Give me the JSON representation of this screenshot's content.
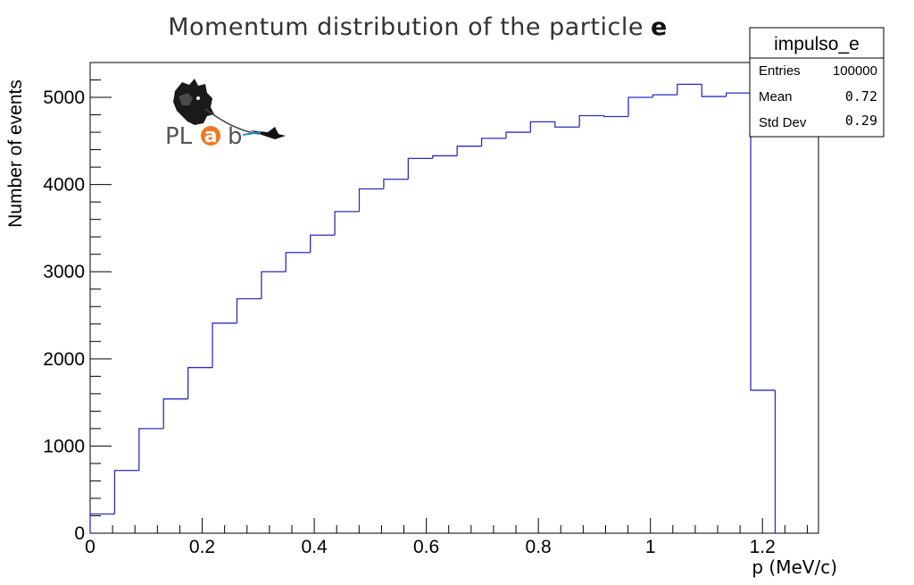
{
  "chart_data": {
    "type": "histogram",
    "title": "Momentum distribution of the particle",
    "title_particle": "e",
    "xlabel": "p (MeV/c)",
    "ylabel": "Number of events",
    "xlim": [
      0,
      1.3
    ],
    "ylim": [
      0,
      5400
    ],
    "x_ticks": [
      0,
      0.2,
      0.4,
      0.6,
      0.8,
      1,
      1.2
    ],
    "x_tick_labels": [
      "0",
      "0.2",
      "0.4",
      "0.6",
      "0.8",
      "1",
      "1.2"
    ],
    "y_ticks": [
      0,
      1000,
      2000,
      3000,
      4000,
      5000
    ],
    "y_tick_labels": [
      "0",
      "1000",
      "2000",
      "3000",
      "4000",
      "5000"
    ],
    "bin_edges": [
      0,
      0.0437,
      0.0873,
      0.131,
      0.1747,
      0.2183,
      0.262,
      0.3057,
      0.3493,
      0.393,
      0.4367,
      0.4803,
      0.524,
      0.5677,
      0.6113,
      0.655,
      0.6987,
      0.7423,
      0.786,
      0.8297,
      0.8733,
      0.917,
      0.9607,
      1.0043,
      1.048,
      1.0917,
      1.1353,
      1.179,
      1.2227
    ],
    "counts": [
      220,
      720,
      1200,
      1540,
      1900,
      2410,
      2690,
      3000,
      3220,
      3420,
      3690,
      3950,
      4060,
      4300,
      4330,
      4440,
      4530,
      4600,
      4720,
      4660,
      4790,
      4780,
      5000,
      5030,
      5150,
      5010,
      5050,
      1640
    ],
    "line_color": "#2d2dbf",
    "stats_box": {
      "name": "impulso_e",
      "entries_label": "Entries",
      "entries_value": "100000",
      "mean_label": "Mean",
      "mean_value": "0.72",
      "stddev_label": "Std Dev",
      "stddev_value": "0.29"
    },
    "logo": {
      "text_left": "PL",
      "text_right": "b",
      "circle_letter": "a",
      "accent_color": "#f07820"
    }
  }
}
